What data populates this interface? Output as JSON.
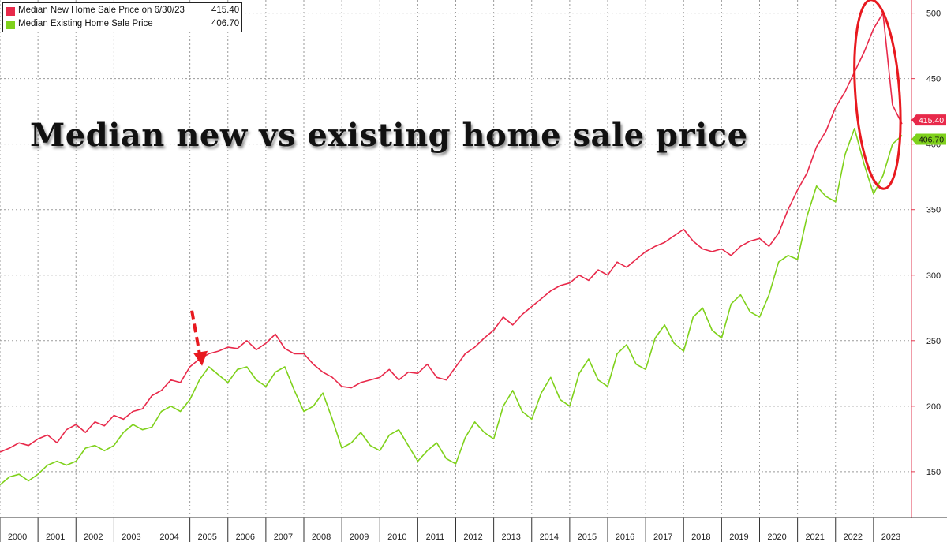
{
  "chart_data": {
    "type": "line",
    "title": "Median new vs existing home sale price",
    "xlabel": "",
    "ylabel": "",
    "x_tick_labels": [
      "2000",
      "2001",
      "2002",
      "2003",
      "2004",
      "2005",
      "2006",
      "2007",
      "2008",
      "2009",
      "2010",
      "2011",
      "2012",
      "2013",
      "2014",
      "2015",
      "2016",
      "2017",
      "2018",
      "2019",
      "2020",
      "2021",
      "2022",
      "2023"
    ],
    "y_ticks": [
      150,
      200,
      250,
      300,
      350,
      400,
      450,
      500
    ],
    "ylim": [
      115,
      510
    ],
    "xlim": [
      2000.0,
      2024.0
    ],
    "grid": true,
    "legend_position": "top-left",
    "legend": [
      {
        "name": "Median New Home Sale Price on 6/30/23",
        "last_value": "415.40",
        "color": "#e8294a"
      },
      {
        "name": "Median Existing Home Sale Price",
        "last_value": "406.70",
        "color": "#7fd11b"
      }
    ],
    "last_value_labels": [
      "415.40",
      "406.70"
    ],
    "series": [
      {
        "name": "Median New Home Sale Price",
        "color": "#e8294a",
        "points": [
          [
            2000.0,
            165
          ],
          [
            2000.25,
            168
          ],
          [
            2000.5,
            172
          ],
          [
            2000.75,
            170
          ],
          [
            2001.0,
            175
          ],
          [
            2001.25,
            178
          ],
          [
            2001.5,
            172
          ],
          [
            2001.75,
            182
          ],
          [
            2002.0,
            186
          ],
          [
            2002.25,
            180
          ],
          [
            2002.5,
            188
          ],
          [
            2002.75,
            185
          ],
          [
            2003.0,
            193
          ],
          [
            2003.25,
            190
          ],
          [
            2003.5,
            196
          ],
          [
            2003.75,
            198
          ],
          [
            2004.0,
            208
          ],
          [
            2004.25,
            212
          ],
          [
            2004.5,
            220
          ],
          [
            2004.75,
            218
          ],
          [
            2005.0,
            230
          ],
          [
            2005.25,
            236
          ],
          [
            2005.5,
            240
          ],
          [
            2005.75,
            242
          ],
          [
            2006.0,
            245
          ],
          [
            2006.25,
            244
          ],
          [
            2006.5,
            250
          ],
          [
            2006.75,
            243
          ],
          [
            2007.0,
            248
          ],
          [
            2007.25,
            255
          ],
          [
            2007.5,
            244
          ],
          [
            2007.75,
            240
          ],
          [
            2008.0,
            240
          ],
          [
            2008.25,
            232
          ],
          [
            2008.5,
            226
          ],
          [
            2008.75,
            222
          ],
          [
            2009.0,
            215
          ],
          [
            2009.25,
            214
          ],
          [
            2009.5,
            218
          ],
          [
            2009.75,
            220
          ],
          [
            2010.0,
            222
          ],
          [
            2010.25,
            228
          ],
          [
            2010.5,
            220
          ],
          [
            2010.75,
            226
          ],
          [
            2011.0,
            225
          ],
          [
            2011.25,
            232
          ],
          [
            2011.5,
            222
          ],
          [
            2011.75,
            220
          ],
          [
            2012.0,
            230
          ],
          [
            2012.25,
            240
          ],
          [
            2012.5,
            245
          ],
          [
            2012.75,
            252
          ],
          [
            2013.0,
            258
          ],
          [
            2013.25,
            268
          ],
          [
            2013.5,
            262
          ],
          [
            2013.75,
            270
          ],
          [
            2014.0,
            276
          ],
          [
            2014.25,
            282
          ],
          [
            2014.5,
            288
          ],
          [
            2014.75,
            292
          ],
          [
            2015.0,
            294
          ],
          [
            2015.25,
            300
          ],
          [
            2015.5,
            296
          ],
          [
            2015.75,
            304
          ],
          [
            2016.0,
            300
          ],
          [
            2016.25,
            310
          ],
          [
            2016.5,
            306
          ],
          [
            2016.75,
            312
          ],
          [
            2017.0,
            318
          ],
          [
            2017.25,
            322
          ],
          [
            2017.5,
            325
          ],
          [
            2017.75,
            330
          ],
          [
            2018.0,
            335
          ],
          [
            2018.25,
            326
          ],
          [
            2018.5,
            320
          ],
          [
            2018.75,
            318
          ],
          [
            2019.0,
            320
          ],
          [
            2019.25,
            315
          ],
          [
            2019.5,
            322
          ],
          [
            2019.75,
            326
          ],
          [
            2020.0,
            328
          ],
          [
            2020.25,
            322
          ],
          [
            2020.5,
            332
          ],
          [
            2020.75,
            350
          ],
          [
            2021.0,
            365
          ],
          [
            2021.25,
            378
          ],
          [
            2021.5,
            398
          ],
          [
            2021.75,
            410
          ],
          [
            2022.0,
            428
          ],
          [
            2022.25,
            440
          ],
          [
            2022.5,
            455
          ],
          [
            2022.75,
            470
          ],
          [
            2023.0,
            488
          ],
          [
            2023.25,
            500
          ],
          [
            2023.5,
            430
          ],
          [
            2023.75,
            415.4
          ]
        ]
      },
      {
        "name": "Median Existing Home Sale Price",
        "color": "#7fd11b",
        "points": [
          [
            2000.0,
            140
          ],
          [
            2000.25,
            146
          ],
          [
            2000.5,
            148
          ],
          [
            2000.75,
            143
          ],
          [
            2001.0,
            148
          ],
          [
            2001.25,
            155
          ],
          [
            2001.5,
            158
          ],
          [
            2001.75,
            155
          ],
          [
            2002.0,
            158
          ],
          [
            2002.25,
            168
          ],
          [
            2002.5,
            170
          ],
          [
            2002.75,
            166
          ],
          [
            2003.0,
            170
          ],
          [
            2003.25,
            180
          ],
          [
            2003.5,
            186
          ],
          [
            2003.75,
            182
          ],
          [
            2004.0,
            184
          ],
          [
            2004.25,
            196
          ],
          [
            2004.5,
            200
          ],
          [
            2004.75,
            196
          ],
          [
            2005.0,
            205
          ],
          [
            2005.25,
            220
          ],
          [
            2005.5,
            230
          ],
          [
            2005.75,
            224
          ],
          [
            2006.0,
            218
          ],
          [
            2006.25,
            228
          ],
          [
            2006.5,
            230
          ],
          [
            2006.75,
            220
          ],
          [
            2007.0,
            215
          ],
          [
            2007.25,
            226
          ],
          [
            2007.5,
            230
          ],
          [
            2007.75,
            212
          ],
          [
            2008.0,
            196
          ],
          [
            2008.25,
            200
          ],
          [
            2008.5,
            210
          ],
          [
            2008.75,
            190
          ],
          [
            2009.0,
            168
          ],
          [
            2009.25,
            172
          ],
          [
            2009.5,
            180
          ],
          [
            2009.75,
            170
          ],
          [
            2010.0,
            166
          ],
          [
            2010.25,
            178
          ],
          [
            2010.5,
            182
          ],
          [
            2010.75,
            170
          ],
          [
            2011.0,
            158
          ],
          [
            2011.25,
            166
          ],
          [
            2011.5,
            172
          ],
          [
            2011.75,
            160
          ],
          [
            2012.0,
            156
          ],
          [
            2012.25,
            176
          ],
          [
            2012.5,
            188
          ],
          [
            2012.75,
            180
          ],
          [
            2013.0,
            175
          ],
          [
            2013.25,
            200
          ],
          [
            2013.5,
            212
          ],
          [
            2013.75,
            196
          ],
          [
            2014.0,
            190
          ],
          [
            2014.25,
            210
          ],
          [
            2014.5,
            222
          ],
          [
            2014.75,
            205
          ],
          [
            2015.0,
            200
          ],
          [
            2015.25,
            225
          ],
          [
            2015.5,
            236
          ],
          [
            2015.75,
            220
          ],
          [
            2016.0,
            215
          ],
          [
            2016.25,
            240
          ],
          [
            2016.5,
            247
          ],
          [
            2016.75,
            232
          ],
          [
            2017.0,
            228
          ],
          [
            2017.25,
            252
          ],
          [
            2017.5,
            262
          ],
          [
            2017.75,
            248
          ],
          [
            2018.0,
            242
          ],
          [
            2018.25,
            268
          ],
          [
            2018.5,
            275
          ],
          [
            2018.75,
            258
          ],
          [
            2019.0,
            252
          ],
          [
            2019.25,
            278
          ],
          [
            2019.5,
            285
          ],
          [
            2019.75,
            272
          ],
          [
            2020.0,
            268
          ],
          [
            2020.25,
            285
          ],
          [
            2020.5,
            310
          ],
          [
            2020.75,
            315
          ],
          [
            2021.0,
            312
          ],
          [
            2021.25,
            345
          ],
          [
            2021.5,
            368
          ],
          [
            2021.75,
            360
          ],
          [
            2022.0,
            356
          ],
          [
            2022.25,
            392
          ],
          [
            2022.5,
            412
          ],
          [
            2022.75,
            385
          ],
          [
            2023.0,
            362
          ],
          [
            2023.25,
            376
          ],
          [
            2023.5,
            400
          ],
          [
            2023.75,
            406.7
          ]
        ]
      }
    ],
    "annotations": [
      {
        "type": "arrow",
        "color": "#e8191f",
        "target_x": 2005.3,
        "target_y": 232
      },
      {
        "type": "ellipse",
        "color": "#e8191f",
        "center_x": 2023.0,
        "center_y": 420
      }
    ]
  }
}
